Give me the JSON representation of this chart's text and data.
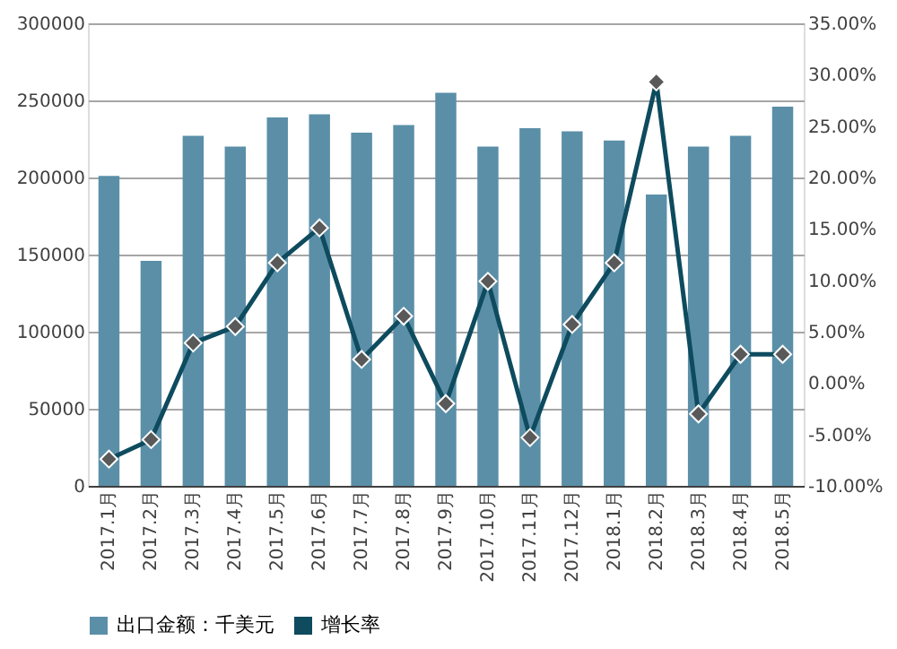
{
  "chart_data": {
    "type": "bar",
    "categories": [
      "2017.1月",
      "2017.2月",
      "2017.3月",
      "2017.4月",
      "2017.5月",
      "2017.6月",
      "2017.7月",
      "2017.8月",
      "2017.9月",
      "2017.10月",
      "2017.11月",
      "2017.12月",
      "2018.1月",
      "2018.2月",
      "2018.3月",
      "2018.4月",
      "2018.5月"
    ],
    "series": [
      {
        "name": "出口金额：千美元",
        "color": "#5b8fa8",
        "values": [
          201000,
          146000,
          227000,
          220000,
          239000,
          241000,
          229000,
          234000,
          255000,
          220000,
          232000,
          230000,
          224000,
          189000,
          220000,
          227000,
          246000
        ]
      },
      {
        "name": "增长率",
        "type": "line",
        "axis": "y2",
        "color": "#0e4b5e",
        "marker": "diamond",
        "values": [
          -7.4,
          -5.5,
          3.9,
          5.5,
          11.7,
          15.1,
          2.3,
          6.5,
          -2,
          9.9,
          -5.3,
          5.7,
          11.7,
          29.3,
          -3,
          2.8,
          2.8
        ]
      }
    ],
    "ylim": [
      0,
      300000
    ],
    "yticks": [
      0,
      50000,
      100000,
      150000,
      200000,
      250000,
      300000
    ],
    "y2lim": [
      -10,
      35
    ],
    "y2ticks": [
      {
        "value": -10,
        "label": "-10.00%"
      },
      {
        "value": -5,
        "label": "-5.00%"
      },
      {
        "value": 0,
        "label": "0.00%"
      },
      {
        "value": 5,
        "label": "5.00%"
      },
      {
        "value": 10,
        "label": "10.00%"
      },
      {
        "value": 15,
        "label": "15.00%"
      },
      {
        "value": 20,
        "label": "20.00%"
      },
      {
        "value": 25,
        "label": "25.00%"
      },
      {
        "value": 30,
        "label": "30.00%"
      },
      {
        "value": 35,
        "label": "35.00%"
      }
    ],
    "grid": "y",
    "legend": "bottom"
  }
}
